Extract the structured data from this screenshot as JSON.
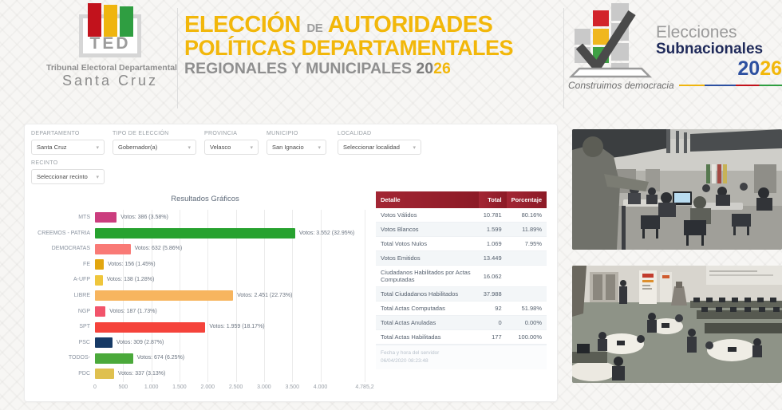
{
  "header": {
    "ted_logo": {
      "acronym": "TED",
      "line1": "Tribunal Electoral Departamental",
      "line2": "Santa Cruz"
    },
    "title": {
      "l1_a": "ELECCIÓN",
      "l1_de": "DE",
      "l1_b": "AUTORIDADES",
      "l2": "POLÍTICAS DEPARTAMENTALES",
      "l3": "REGIONALES Y MUNICIPALES",
      "l3_year_a": "20",
      "l3_year_b": "26"
    },
    "right_logo": {
      "line1": "Elecciones",
      "line2": "Subnacionales",
      "year_a": "20",
      "year_b": "26",
      "tagline": "Construimos democracia"
    }
  },
  "filters": [
    {
      "id": "departamento",
      "label": "DEPARTAMENTO",
      "value": "Santa Cruz"
    },
    {
      "id": "tipo-de-eleccion",
      "label": "TIPO DE ELECCIÓN",
      "value": "Gobernador(a)"
    },
    {
      "id": "provincia",
      "label": "PROVINCIA",
      "value": "Velasco"
    },
    {
      "id": "municipio",
      "label": "MUNICIPIO",
      "value": "San Ignacio"
    },
    {
      "id": "localidad",
      "label": "LOCALIDAD",
      "value": "Seleccionar localidad"
    },
    {
      "id": "recinto",
      "label": "RECINTO",
      "value": "Seleccionar recinto"
    }
  ],
  "chart_data": {
    "type": "bar",
    "orientation": "horizontal",
    "title": "Resultados Gráficos",
    "categories": [
      "MTS",
      "CREEMOS - PATRIA",
      "DEMOCRATAS",
      "FE",
      "A-UFP",
      "LIBRE",
      "NGP",
      "SPT",
      "PSC",
      "TODOS-",
      "PDC"
    ],
    "values": [
      386,
      3552,
      632,
      156,
      138,
      2451,
      187,
      1959,
      309,
      674,
      337
    ],
    "labels": [
      "Votos: 386 (3.58%)",
      "Votos: 3.552 (32.95%)",
      "Votos: 632 (5.86%)",
      "Votos: 156 (1.45%)",
      "Votos: 138 (1.28%)",
      "Votos: 2.451 (22.73%)",
      "Votos: 187 (1.73%)",
      "Votos: 1.959 (18.17%)",
      "Votos: 309 (2.87%)",
      "Votos: 674 (6.25%)",
      "Votos: 337 (3.13%)"
    ],
    "bar_colors": [
      "#cb3d7e",
      "#27a22f",
      "#f97a76",
      "#e2a60f",
      "#efc63c",
      "#f7b55f",
      "#f2546b",
      "#f5433b",
      "#173a66",
      "#4ba93b",
      "#dfc04f"
    ],
    "xlabel": "",
    "ylabel": "",
    "xlim": [
      0,
      4785.2
    ],
    "x_ticks": [
      "0",
      "500",
      "1.000",
      "1.500",
      "2.000",
      "2.500",
      "3.000",
      "3.500",
      "4.000",
      "4.785,2"
    ],
    "x_tick_values": [
      0,
      500,
      1000,
      1500,
      2000,
      2500,
      3000,
      3500,
      4000,
      4785.2
    ],
    "grid": true,
    "legend": false
  },
  "table": {
    "headers": [
      "Detalle",
      "Total",
      "Porcentaje"
    ],
    "rows": [
      [
        "Votos Válidos",
        "10.781",
        "80.16%"
      ],
      [
        "Votos Blancos",
        "1.599",
        "11.89%"
      ],
      [
        "Total Votos Nulos",
        "1.069",
        "7.95%"
      ],
      [
        "Votos Emitidos",
        "13.449",
        ""
      ],
      [
        "Ciudadanos Habilitados por Actas Computadas",
        "16.062",
        ""
      ],
      [
        "Total Ciudadanos Habilitados",
        "37.988",
        ""
      ],
      [
        "Total Actas Computadas",
        "92",
        "51.98%"
      ],
      [
        "Total Actas Anuladas",
        "0",
        "0.00%"
      ],
      [
        "Total Actas Habilitadas",
        "177",
        "100.00%"
      ]
    ],
    "footer_line1": "Fecha y hora del servidor",
    "footer_line2": "06/04/2020 08:23:48"
  },
  "photos": [
    {
      "name": "sala-de-computo-vista-1"
    },
    {
      "name": "sala-de-computo-vista-2"
    }
  ]
}
